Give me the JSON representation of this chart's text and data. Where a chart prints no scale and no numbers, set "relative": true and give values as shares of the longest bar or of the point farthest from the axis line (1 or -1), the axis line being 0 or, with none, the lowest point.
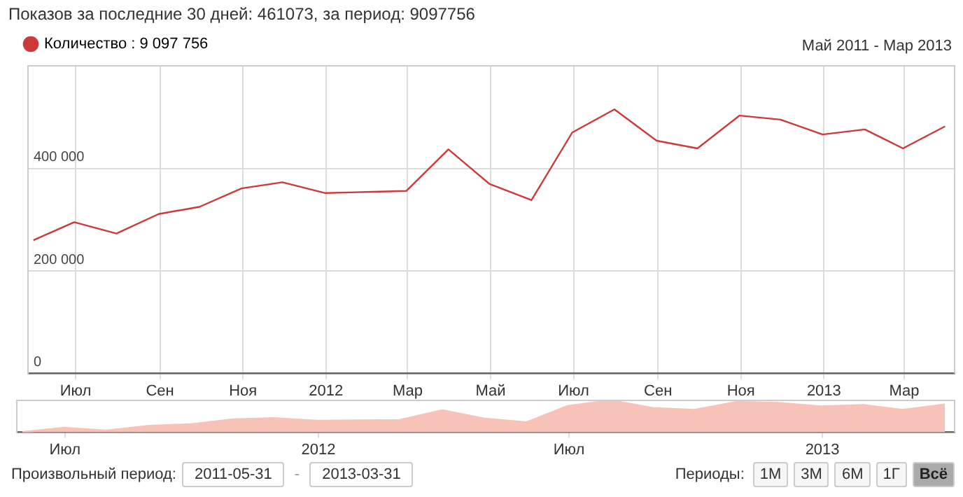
{
  "chart_data": [
    {
      "type": "line",
      "title": "Показов за последние 30 дней: 461073, за период: 9097756",
      "subtitle": "Май 2011 - Мар 2013",
      "x": [
        "2011-05-31",
        "2011-06-30",
        "2011-07-31",
        "2011-08-31",
        "2011-09-30",
        "2011-10-31",
        "2011-11-30",
        "2011-12-31",
        "2012-01-31",
        "2012-02-29",
        "2012-03-31",
        "2012-04-30",
        "2012-05-31",
        "2012-06-30",
        "2012-07-31",
        "2012-08-31",
        "2012-09-30",
        "2012-10-31",
        "2012-11-30",
        "2012-12-31",
        "2013-01-31",
        "2013-02-28",
        "2013-03-31"
      ],
      "series": [
        {
          "name": "Количество : 9 097 756",
          "color": "#cc3a3a",
          "values": [
            260000,
            295000,
            273000,
            311000,
            325000,
            361000,
            373000,
            352000,
            354000,
            356000,
            437000,
            370000,
            338000,
            470000,
            515000,
            454000,
            439000,
            503000,
            495000,
            466000,
            476000,
            439000,
            482000
          ]
        }
      ],
      "xlim": [
        "2011-05-27",
        "2013-04-07"
      ],
      "xticks": [
        {
          "value": "2011-07-01",
          "label": "Июл"
        },
        {
          "value": "2011-09-01",
          "label": "Сен"
        },
        {
          "value": "2011-11-01",
          "label": "Ноя"
        },
        {
          "value": "2012-01-01",
          "label": "2012"
        },
        {
          "value": "2012-03-01",
          "label": "Мар"
        },
        {
          "value": "2012-05-01",
          "label": "Май"
        },
        {
          "value": "2012-07-01",
          "label": "Июл"
        },
        {
          "value": "2012-09-01",
          "label": "Сен"
        },
        {
          "value": "2012-11-01",
          "label": "Ноя"
        },
        {
          "value": "2013-01-01",
          "label": "2013"
        },
        {
          "value": "2013-03-01",
          "label": "Мар"
        }
      ],
      "ylim": [
        0,
        600000
      ],
      "yticks": [
        {
          "value": 0,
          "label": "0"
        },
        {
          "value": 200000,
          "label": "200 000"
        },
        {
          "value": 400000,
          "label": "400 000"
        }
      ],
      "grid": true,
      "legend": "top left",
      "marker": "none"
    },
    {
      "type": "area",
      "relative": true,
      "tick_labels": "x",
      "x": [
        "2011-05-31",
        "2011-06-30",
        "2011-07-31",
        "2011-08-31",
        "2011-09-30",
        "2011-10-31",
        "2011-11-30",
        "2011-12-31",
        "2012-01-31",
        "2012-02-29",
        "2012-03-31",
        "2012-04-30",
        "2012-05-31",
        "2012-06-30",
        "2012-07-31",
        "2012-08-31",
        "2012-09-30",
        "2012-10-31",
        "2012-11-30",
        "2012-12-31",
        "2013-01-31",
        "2013-02-28",
        "2013-03-31"
      ],
      "series": [
        {
          "color": "#f7c3b8",
          "values": [
            0,
            0.14,
            0.05,
            0.2,
            0.25,
            0.4,
            0.44,
            0.36,
            0.37,
            0.38,
            0.69,
            0.43,
            0.31,
            0.82,
            1,
            0.76,
            0.7,
            0.95,
            0.92,
            0.81,
            0.85,
            0.7,
            0.87
          ]
        }
      ],
      "xlim": [
        "2011-05-27",
        "2013-04-07"
      ],
      "xticks": [
        {
          "value": "2011-07-01",
          "label": "Июл"
        },
        {
          "value": "2012-01-01",
          "label": "2012"
        },
        {
          "value": "2012-07-01",
          "label": "Июл"
        },
        {
          "value": "2013-01-01",
          "label": "2013"
        }
      ],
      "annotations": [
        "Произвольный период:",
        "2011-05-31",
        "-",
        "2013-03-31",
        "Периоды:",
        "1М",
        "3М",
        "6М",
        "1Г",
        "Всё"
      ],
      "legend": false,
      "grid": false
    }
  ]
}
